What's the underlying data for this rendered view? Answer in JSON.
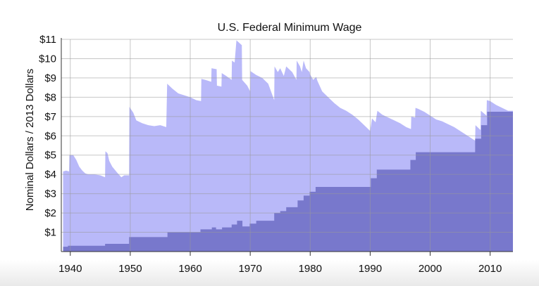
{
  "chart_data": {
    "type": "area",
    "title": "U.S. Federal Minimum Wage",
    "xlabel": "",
    "ylabel": "Nominal Dollars  /  2013 Dollars",
    "xlim": [
      1938.5,
      2013.8
    ],
    "ylim": [
      0,
      11
    ],
    "grid": true,
    "x_ticks": [
      1940,
      1950,
      1960,
      1970,
      1980,
      1990,
      2000,
      2010
    ],
    "y_ticks": [
      1,
      2,
      3,
      4,
      5,
      6,
      7,
      8,
      9,
      10,
      11
    ],
    "y_tick_labels": [
      "$1",
      "$2",
      "$3",
      "$4",
      "$5",
      "$6",
      "$7",
      "$8",
      "$9",
      "$10",
      "$11"
    ],
    "x_tick_labels": [
      "1940",
      "1950",
      "1960",
      "1970",
      "1980",
      "1990",
      "2000",
      "2010"
    ],
    "colors": {
      "real": "#b9b9f9",
      "nominal": "#7878cc",
      "grid": "#999999"
    },
    "series": [
      {
        "key": "real",
        "points": [
          [
            1938.8,
            4.15
          ],
          [
            1939.3,
            4.2
          ],
          [
            1939.8,
            4.15
          ],
          [
            1939.85,
            5.0
          ],
          [
            1940.5,
            5.0
          ],
          [
            1941,
            4.75
          ],
          [
            1941.5,
            4.4
          ],
          [
            1942,
            4.2
          ],
          [
            1942.5,
            4.05
          ],
          [
            1943,
            4.0
          ],
          [
            1944,
            4.0
          ],
          [
            1945,
            3.95
          ],
          [
            1945.8,
            3.85
          ],
          [
            1945.85,
            5.2
          ],
          [
            1946.2,
            5.1
          ],
          [
            1946.5,
            4.7
          ],
          [
            1947,
            4.4
          ],
          [
            1947.8,
            4.1
          ],
          [
            1948.5,
            3.85
          ],
          [
            1949,
            3.95
          ],
          [
            1949.8,
            3.95
          ],
          [
            1949.85,
            7.5
          ],
          [
            1950.5,
            7.2
          ],
          [
            1951,
            6.8
          ],
          [
            1952,
            6.65
          ],
          [
            1953,
            6.55
          ],
          [
            1954,
            6.5
          ],
          [
            1955,
            6.55
          ],
          [
            1956,
            6.45
          ],
          [
            1956.15,
            8.7
          ],
          [
            1957,
            8.45
          ],
          [
            1958,
            8.2
          ],
          [
            1959,
            8.1
          ],
          [
            1960,
            8.0
          ],
          [
            1961,
            7.85
          ],
          [
            1961.8,
            7.8
          ],
          [
            1961.85,
            8.95
          ],
          [
            1962.5,
            8.9
          ],
          [
            1963.5,
            8.8
          ],
          [
            1963.55,
            9.5
          ],
          [
            1964.4,
            9.45
          ],
          [
            1964.45,
            8.6
          ],
          [
            1965.2,
            8.55
          ],
          [
            1965.25,
            9.25
          ],
          [
            1966,
            9.1
          ],
          [
            1966.9,
            8.9
          ],
          [
            1966.95,
            9.9
          ],
          [
            1967.4,
            9.8
          ],
          [
            1967.7,
            10.95
          ],
          [
            1968.6,
            10.7
          ],
          [
            1968.65,
            8.9
          ],
          [
            1969.5,
            8.6
          ],
          [
            1970,
            8.3
          ],
          [
            1970.05,
            9.35
          ],
          [
            1971,
            9.15
          ],
          [
            1972,
            9.0
          ],
          [
            1973,
            8.7
          ],
          [
            1974,
            7.85
          ],
          [
            1974.05,
            9.6
          ],
          [
            1974.6,
            9.3
          ],
          [
            1975,
            9.5
          ],
          [
            1975.6,
            9.1
          ],
          [
            1976,
            9.6
          ],
          [
            1977,
            9.3
          ],
          [
            1977.7,
            8.9
          ],
          [
            1977.75,
            9.9
          ],
          [
            1978.3,
            9.6
          ],
          [
            1978.6,
            9.3
          ],
          [
            1978.9,
            9.9
          ],
          [
            1979.3,
            9.5
          ],
          [
            1979.9,
            9.3
          ],
          [
            1979.95,
            9.2
          ],
          [
            1980.5,
            8.9
          ],
          [
            1981,
            9.05
          ],
          [
            1981.2,
            8.85
          ],
          [
            1982,
            8.3
          ],
          [
            1983,
            8.0
          ],
          [
            1984,
            7.7
          ],
          [
            1985,
            7.45
          ],
          [
            1986,
            7.3
          ],
          [
            1987,
            7.1
          ],
          [
            1988,
            6.85
          ],
          [
            1989,
            6.55
          ],
          [
            1990,
            6.25
          ],
          [
            1990.3,
            6.9
          ],
          [
            1990.9,
            6.7
          ],
          [
            1991.2,
            7.3
          ],
          [
            1992,
            7.1
          ],
          [
            1993,
            6.95
          ],
          [
            1994,
            6.8
          ],
          [
            1995,
            6.65
          ],
          [
            1996,
            6.45
          ],
          [
            1996.8,
            6.35
          ],
          [
            1996.85,
            7.0
          ],
          [
            1997.5,
            6.95
          ],
          [
            1997.55,
            7.45
          ],
          [
            1998,
            7.4
          ],
          [
            1999,
            7.25
          ],
          [
            2000,
            7.05
          ],
          [
            2001,
            6.85
          ],
          [
            2002,
            6.75
          ],
          [
            2003,
            6.6
          ],
          [
            2004,
            6.45
          ],
          [
            2005,
            6.25
          ],
          [
            2006,
            6.05
          ],
          [
            2007,
            5.85
          ],
          [
            2007.5,
            5.75
          ],
          [
            2007.55,
            6.55
          ],
          [
            2008.4,
            6.3
          ],
          [
            2008.45,
            7.3
          ],
          [
            2009.4,
            7.05
          ],
          [
            2009.45,
            7.85
          ],
          [
            2010,
            7.8
          ],
          [
            2011,
            7.6
          ],
          [
            2012,
            7.45
          ],
          [
            2013,
            7.3
          ],
          [
            2013.8,
            7.3
          ]
        ]
      },
      {
        "key": "nominal",
        "points": [
          [
            1938.8,
            0.25
          ],
          [
            1939.6,
            0.25
          ],
          [
            1939.6,
            0.3
          ],
          [
            1945.8,
            0.3
          ],
          [
            1945.8,
            0.4
          ],
          [
            1949.8,
            0.4
          ],
          [
            1949.8,
            0.75
          ],
          [
            1956.2,
            0.75
          ],
          [
            1956.2,
            1.0
          ],
          [
            1961.7,
            1.0
          ],
          [
            1961.7,
            1.15
          ],
          [
            1963.6,
            1.15
          ],
          [
            1963.6,
            1.25
          ],
          [
            1964.3,
            1.25
          ],
          [
            1964.3,
            1.15
          ],
          [
            1965.3,
            1.15
          ],
          [
            1965.3,
            1.25
          ],
          [
            1966.9,
            1.25
          ],
          [
            1966.9,
            1.4
          ],
          [
            1967.8,
            1.4
          ],
          [
            1967.8,
            1.6
          ],
          [
            1968.7,
            1.6
          ],
          [
            1968.7,
            1.3
          ],
          [
            1969.9,
            1.3
          ],
          [
            1969.9,
            1.45
          ],
          [
            1971.0,
            1.45
          ],
          [
            1971.0,
            1.6
          ],
          [
            1974.0,
            1.6
          ],
          [
            1974.0,
            2.0
          ],
          [
            1975.0,
            2.0
          ],
          [
            1975.0,
            2.1
          ],
          [
            1976.0,
            2.1
          ],
          [
            1976.0,
            2.3
          ],
          [
            1977.9,
            2.3
          ],
          [
            1977.9,
            2.65
          ],
          [
            1978.9,
            2.65
          ],
          [
            1978.9,
            2.9
          ],
          [
            1979.9,
            2.9
          ],
          [
            1979.9,
            3.1
          ],
          [
            1980.9,
            3.1
          ],
          [
            1980.9,
            3.35
          ],
          [
            1990.1,
            3.35
          ],
          [
            1990.1,
            3.8
          ],
          [
            1991.1,
            3.8
          ],
          [
            1991.1,
            4.25
          ],
          [
            1996.7,
            4.25
          ],
          [
            1996.7,
            4.75
          ],
          [
            1997.6,
            4.75
          ],
          [
            1997.6,
            5.15
          ],
          [
            2007.5,
            5.15
          ],
          [
            2007.5,
            5.85
          ],
          [
            2008.5,
            5.85
          ],
          [
            2008.5,
            6.55
          ],
          [
            2009.5,
            6.55
          ],
          [
            2009.5,
            7.25
          ],
          [
            2013.8,
            7.25
          ]
        ]
      }
    ]
  }
}
